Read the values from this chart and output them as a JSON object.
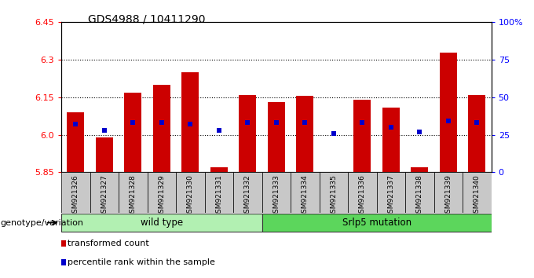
{
  "title": "GDS4988 / 10411290",
  "samples": [
    "GSM921326",
    "GSM921327",
    "GSM921328",
    "GSM921329",
    "GSM921330",
    "GSM921331",
    "GSM921332",
    "GSM921333",
    "GSM921334",
    "GSM921335",
    "GSM921336",
    "GSM921337",
    "GSM921338",
    "GSM921339",
    "GSM921340"
  ],
  "transformed_count": [
    6.09,
    5.99,
    6.17,
    6.2,
    6.25,
    5.87,
    6.16,
    6.13,
    6.155,
    5.845,
    6.14,
    6.11,
    5.87,
    6.33,
    6.16
  ],
  "percentile_rank": [
    32,
    28,
    33,
    33,
    32,
    28,
    33,
    33,
    33,
    26,
    33,
    30,
    27,
    34,
    33
  ],
  "ylim_left": [
    5.85,
    6.45
  ],
  "ylim_right": [
    0,
    100
  ],
  "yticks_left": [
    5.85,
    6.0,
    6.15,
    6.3,
    6.45
  ],
  "yticks_right": [
    0,
    25,
    50,
    75,
    100
  ],
  "ytick_labels_right": [
    "0",
    "25",
    "50",
    "75",
    "100%"
  ],
  "hlines": [
    6.0,
    6.15,
    6.3
  ],
  "bar_color": "#cc0000",
  "blue_color": "#0000cc",
  "bar_bottom": 5.85,
  "wild_type_count": 7,
  "mutation_count": 8,
  "wild_type_label": "wild type",
  "mutation_label": "Srlp5 mutation",
  "genotype_label": "genotype/variation",
  "legend_red": "transformed count",
  "legend_blue": "percentile rank within the sample",
  "light_green": "#b2f0b2",
  "medium_green": "#5cd65c",
  "bg_color": "#c8c8c8",
  "plot_bg": "#FFFFFF"
}
